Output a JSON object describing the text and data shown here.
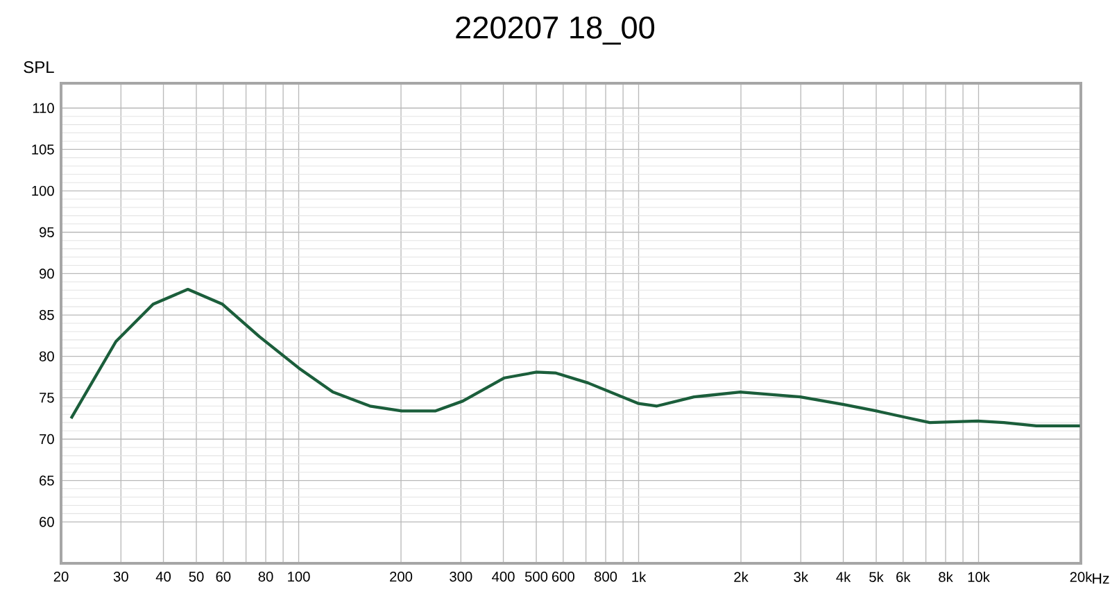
{
  "chart_data": {
    "type": "line",
    "title": "220207 18_00",
    "ylabel": "SPL",
    "series": [
      {
        "color": "#1b5e3b",
        "x": [
          21.4,
          29,
          37.3,
          47.2,
          59.7,
          76.6,
          100,
          126,
          162,
          201,
          252,
          304,
          403,
          501,
          569,
          709,
          1000,
          1132,
          1455,
          1990,
          2990,
          3990,
          5010,
          6150,
          7190,
          9930,
          11870,
          14790,
          19870
        ],
        "values": [
          72.5,
          81.8,
          86.3,
          88.1,
          86.3,
          82.4,
          78.6,
          75.7,
          74.0,
          73.4,
          73.4,
          74.6,
          77.4,
          78.1,
          78.0,
          76.8,
          74.3,
          74.0,
          75.1,
          75.7,
          75.1,
          74.2,
          73.4,
          72.6,
          72.0,
          72.2,
          72.0,
          71.6,
          71.6
        ]
      }
    ],
    "log": "x",
    "xlim": [
      20,
      20000
    ],
    "ylim": [
      55,
      113
    ],
    "xticks": [
      20,
      30,
      40,
      50,
      60,
      {
        "value": 70,
        "label": null
      },
      80,
      {
        "value": 90,
        "label": null
      },
      100,
      200,
      300,
      400,
      500,
      600,
      {
        "value": 700,
        "label": null
      },
      800,
      {
        "value": 900,
        "label": null
      },
      {
        "value": 1000,
        "label": "1k"
      },
      {
        "value": 2000,
        "label": "2k"
      },
      {
        "value": 3000,
        "label": "3k"
      },
      {
        "value": 4000,
        "label": "4k"
      },
      {
        "value": 5000,
        "label": "5k"
      },
      {
        "value": 6000,
        "label": "6k"
      },
      {
        "value": 7000,
        "label": null
      },
      {
        "value": 8000,
        "label": "8k"
      },
      {
        "value": 9000,
        "label": null
      },
      {
        "value": 10000,
        "label": "10k"
      },
      {
        "value": 20000,
        "label": "20k"
      }
    ],
    "xlabel": "Hz",
    "yticks": [
      60,
      65,
      70,
      75,
      80,
      85,
      90,
      95,
      100,
      105,
      110
    ],
    "grid": true,
    "marker": "none",
    "line_style": "solid"
  }
}
